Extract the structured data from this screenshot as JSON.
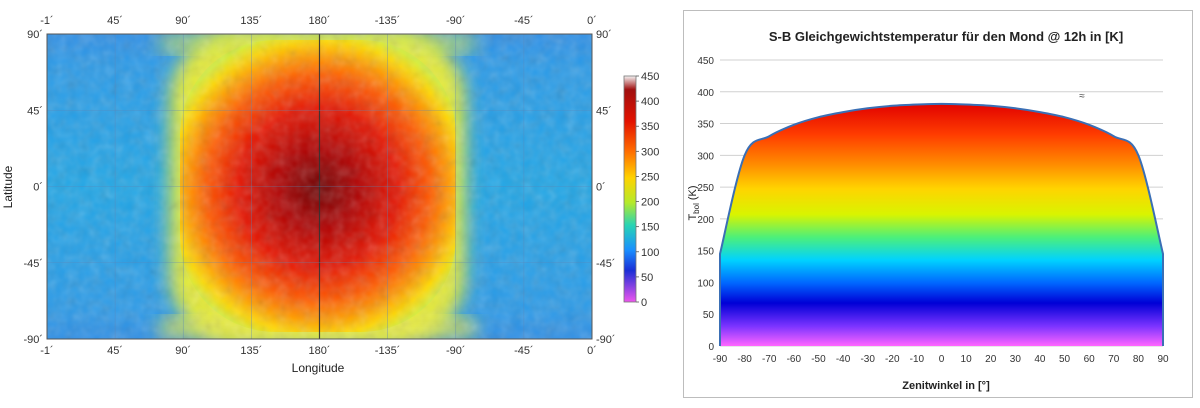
{
  "chart_data": [
    {
      "type": "heatmap",
      "title": "",
      "xlabel": "Longitude",
      "ylabel": "Latitude",
      "x_ticks": [
        "-1´",
        "45´",
        "90´",
        "135´",
        "180´",
        "-135´",
        "-90´",
        "-45´",
        "0´"
      ],
      "y_ticks_left": [
        "90´",
        "45´",
        "0´",
        "-45´",
        "-90´"
      ],
      "y_ticks_right": [
        "90´",
        "45´",
        "0´",
        "-45´",
        "-90´"
      ],
      "colorbar": {
        "min": 0,
        "max": 450,
        "ticks": [
          "450",
          "400",
          "350",
          "300",
          "250",
          "200",
          "150",
          "100",
          "50",
          "0"
        ]
      },
      "peak_value": 390,
      "peak_location": {
        "longitude": 180,
        "latitude": 0
      },
      "background_value": 110,
      "grid": true
    },
    {
      "type": "area",
      "title": "S-B Gleichgewichtstemperatur für den Mond @ 12h in [K]",
      "xlabel": "Zenitwinkel in [°]",
      "ylabel_main": "T",
      "ylabel_sub": "bol",
      "ylabel_unit": "(K)",
      "annotation": "≈",
      "xlim": [
        -90,
        90
      ],
      "ylim": [
        0,
        450
      ],
      "x_ticks": [
        "-90",
        "-80",
        "-70",
        "-60",
        "-50",
        "-40",
        "-30",
        "-20",
        "-10",
        "0",
        "10",
        "20",
        "30",
        "40",
        "50",
        "60",
        "70",
        "80",
        "90"
      ],
      "y_ticks": [
        "0",
        "50",
        "100",
        "150",
        "200",
        "250",
        "300",
        "350",
        "400",
        "450"
      ],
      "x": [
        -90,
        -80,
        -70,
        -60,
        -50,
        -40,
        -30,
        -20,
        -10,
        0,
        10,
        20,
        30,
        40,
        50,
        60,
        70,
        80,
        90
      ],
      "y": [
        145,
        300,
        330,
        348,
        360,
        368,
        374,
        378,
        380,
        381,
        380,
        378,
        374,
        368,
        360,
        348,
        330,
        300,
        145
      ],
      "grid": true
    }
  ]
}
